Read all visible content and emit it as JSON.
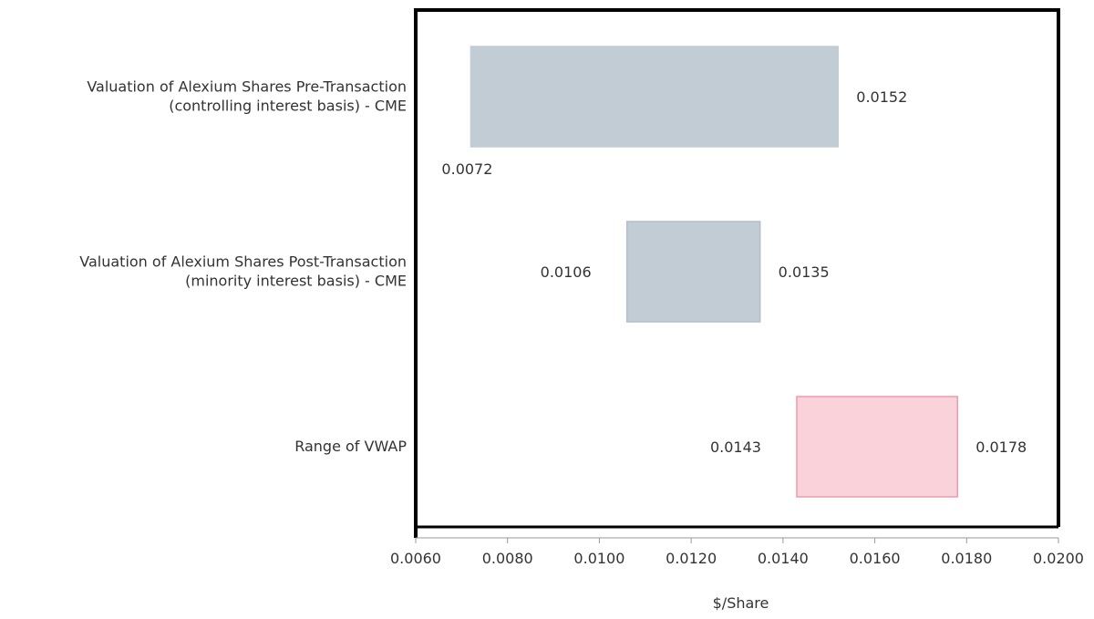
{
  "chart_data": {
    "type": "bar",
    "orientation": "horizontal-floating-range",
    "xlabel": "$/Share",
    "xlim": [
      0.006,
      0.02
    ],
    "xticks": [
      "0.0060",
      "0.0080",
      "0.0100",
      "0.0120",
      "0.0140",
      "0.0160",
      "0.0180",
      "0.0200"
    ],
    "grid": false,
    "categories": [
      {
        "lines": [
          "Valuation of Alexium Shares Pre-Transaction",
          "(controlling interest basis) - CME"
        ],
        "low": 0.0072,
        "high": 0.0152,
        "low_label": "0.0072",
        "high_label": "0.0152",
        "low_label_pos": "below-left",
        "fill": "#c2ccd5",
        "stroke": "#c2ccd5"
      },
      {
        "lines": [
          "Valuation of Alexium Shares Post-Transaction",
          "(minority interest basis) - CME"
        ],
        "low": 0.0106,
        "high": 0.0135,
        "low_label": "0.0106",
        "high_label": "0.0135",
        "low_label_pos": "left",
        "fill": "#c2ccd5",
        "stroke": "#b3bec9"
      },
      {
        "lines": [
          "Range of VWAP"
        ],
        "low": 0.0143,
        "high": 0.0178,
        "low_label": "0.0143",
        "high_label": "0.0178",
        "low_label_pos": "left",
        "fill": "#f9d3d9",
        "stroke": "#ef9aaa"
      }
    ]
  }
}
